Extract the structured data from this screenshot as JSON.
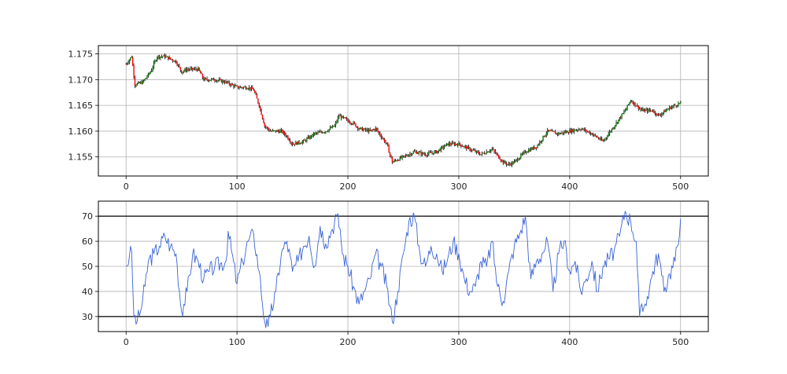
{
  "colors": {
    "up_candle": "#008000",
    "down_candle": "#ff0000",
    "wick": "#000000",
    "indicator_line": "#3a64d8",
    "threshold_line": "#000000",
    "grid": "#b0b0b0"
  },
  "chart_data": [
    {
      "type": "candlestick",
      "xlim": [
        -25,
        525
      ],
      "ylim": [
        1.1513,
        1.1766
      ],
      "xticks": [
        0,
        100,
        200,
        300,
        400,
        500
      ],
      "xtick_labels": [
        "0",
        "100",
        "200",
        "300",
        "400",
        "500"
      ],
      "yticks": [
        1.155,
        1.16,
        1.165,
        1.17,
        1.175
      ],
      "ytick_labels": [
        "1.155",
        "1.160",
        "1.165",
        "1.170",
        "1.175"
      ],
      "grid": true,
      "close_path": [
        [
          0,
          1.173
        ],
        [
          5,
          1.1745
        ],
        [
          8,
          1.169
        ],
        [
          15,
          1.1695
        ],
        [
          22,
          1.1715
        ],
        [
          28,
          1.1745
        ],
        [
          35,
          1.1745
        ],
        [
          45,
          1.1735
        ],
        [
          50,
          1.1715
        ],
        [
          55,
          1.172
        ],
        [
          65,
          1.172
        ],
        [
          70,
          1.17
        ],
        [
          80,
          1.17
        ],
        [
          90,
          1.1695
        ],
        [
          100,
          1.1685
        ],
        [
          110,
          1.1685
        ],
        [
          115,
          1.168
        ],
        [
          120,
          1.165
        ],
        [
          125,
          1.161
        ],
        [
          130,
          1.16
        ],
        [
          140,
          1.16
        ],
        [
          145,
          1.159
        ],
        [
          150,
          1.1575
        ],
        [
          160,
          1.158
        ],
        [
          170,
          1.1595
        ],
        [
          180,
          1.16
        ],
        [
          188,
          1.161
        ],
        [
          192,
          1.163
        ],
        [
          200,
          1.162
        ],
        [
          205,
          1.1615
        ],
        [
          210,
          1.1605
        ],
        [
          220,
          1.16
        ],
        [
          225,
          1.1605
        ],
        [
          230,
          1.159
        ],
        [
          235,
          1.1575
        ],
        [
          240,
          1.154
        ],
        [
          250,
          1.155
        ],
        [
          260,
          1.156
        ],
        [
          270,
          1.1555
        ],
        [
          280,
          1.156
        ],
        [
          290,
          1.1575
        ],
        [
          300,
          1.1575
        ],
        [
          310,
          1.1565
        ],
        [
          320,
          1.1555
        ],
        [
          330,
          1.1565
        ],
        [
          340,
          1.154
        ],
        [
          345,
          1.1535
        ],
        [
          350,
          1.154
        ],
        [
          360,
          1.156
        ],
        [
          370,
          1.157
        ],
        [
          380,
          1.16
        ],
        [
          390,
          1.1595
        ],
        [
          400,
          1.16
        ],
        [
          410,
          1.1605
        ],
        [
          420,
          1.1595
        ],
        [
          430,
          1.158
        ],
        [
          440,
          1.161
        ],
        [
          450,
          1.164
        ],
        [
          455,
          1.166
        ],
        [
          465,
          1.164
        ],
        [
          475,
          1.164
        ],
        [
          480,
          1.163
        ],
        [
          490,
          1.1645
        ],
        [
          500,
          1.1655
        ]
      ]
    },
    {
      "type": "line",
      "xlim": [
        -25,
        525
      ],
      "ylim": [
        24,
        76
      ],
      "xticks": [
        0,
        100,
        200,
        300,
        400,
        500
      ],
      "xtick_labels": [
        "0",
        "100",
        "200",
        "300",
        "400",
        "500"
      ],
      "yticks": [
        30,
        40,
        50,
        60,
        70
      ],
      "ytick_labels": [
        "30",
        "40",
        "50",
        "60",
        "70"
      ],
      "hlines": [
        30,
        70
      ],
      "grid": true,
      "x": [
        0,
        3,
        5,
        7,
        10,
        13,
        17,
        20,
        25,
        30,
        35,
        40,
        45,
        50,
        55,
        60,
        65,
        70,
        75,
        80,
        90,
        92,
        100,
        105,
        110,
        115,
        120,
        125,
        128,
        130,
        135,
        140,
        145,
        150,
        155,
        160,
        165,
        170,
        175,
        180,
        185,
        190,
        193,
        195,
        200,
        205,
        210,
        215,
        220,
        225,
        230,
        235,
        240,
        245,
        250,
        255,
        260,
        265,
        270,
        275,
        280,
        285,
        290,
        295,
        300,
        305,
        310,
        315,
        320,
        325,
        330,
        335,
        340,
        345,
        350,
        355,
        360,
        365,
        370,
        375,
        380,
        385,
        390,
        395,
        400,
        405,
        410,
        415,
        420,
        425,
        430,
        435,
        440,
        445,
        450,
        455,
        460,
        463,
        468,
        470,
        475,
        480,
        485,
        490,
        495,
        500
      ],
      "y": [
        50,
        54,
        56,
        30,
        28,
        32,
        42,
        52,
        55,
        58,
        62,
        58,
        55,
        32,
        40,
        55,
        52,
        45,
        48,
        50,
        52,
        64,
        43,
        52,
        60,
        63,
        48,
        28,
        26,
        30,
        40,
        55,
        60,
        48,
        52,
        58,
        62,
        50,
        66,
        59,
        64,
        70,
        65,
        55,
        50,
        42,
        35,
        40,
        45,
        55,
        50,
        42,
        28,
        40,
        55,
        68,
        70,
        55,
        50,
        58,
        55,
        48,
        53,
        60,
        55,
        45,
        40,
        42,
        52,
        50,
        60,
        42,
        36,
        48,
        58,
        63,
        70,
        45,
        52,
        55,
        60,
        40,
        55,
        60,
        48,
        52,
        40,
        45,
        52,
        40,
        50,
        53,
        56,
        62,
        72,
        68,
        60,
        30,
        35,
        38,
        48,
        55,
        40,
        47,
        52,
        69
      ]
    }
  ]
}
